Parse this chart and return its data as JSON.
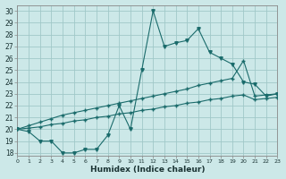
{
  "xlabel": "Humidex (Indice chaleur)",
  "ylabel": "",
  "bg_color": "#cce8e8",
  "grid_color": "#a0c8c8",
  "line_color": "#1a6b6b",
  "x_values": [
    0,
    1,
    2,
    3,
    4,
    5,
    6,
    7,
    8,
    9,
    10,
    11,
    12,
    13,
    14,
    15,
    16,
    17,
    18,
    19,
    20,
    21,
    22,
    23
  ],
  "line1": [
    20,
    19.8,
    19,
    19,
    18,
    18,
    18.3,
    18.3,
    19.5,
    22,
    20,
    25,
    30,
    27,
    27.3,
    27.5,
    28.5,
    26.5,
    26,
    25.5,
    24,
    23.8,
    22.8,
    23
  ],
  "line2": [
    20,
    20.3,
    20.6,
    20.9,
    21.2,
    21.4,
    21.6,
    21.8,
    22.0,
    22.2,
    22.4,
    22.6,
    22.8,
    23.0,
    23.2,
    23.4,
    23.7,
    23.9,
    24.1,
    24.3,
    25.8,
    22.8,
    22.9,
    23.0
  ],
  "line3": [
    20,
    20.1,
    20.2,
    20.4,
    20.5,
    20.7,
    20.8,
    21.0,
    21.1,
    21.3,
    21.4,
    21.6,
    21.7,
    21.9,
    22.0,
    22.2,
    22.3,
    22.5,
    22.6,
    22.8,
    22.9,
    22.5,
    22.6,
    22.7
  ],
  "xlim": [
    0,
    23
  ],
  "ylim": [
    17.8,
    30.5
  ],
  "yticks": [
    18,
    19,
    20,
    21,
    22,
    23,
    24,
    25,
    26,
    27,
    28,
    29,
    30
  ],
  "xticks": [
    0,
    1,
    2,
    3,
    4,
    5,
    6,
    7,
    8,
    9,
    10,
    11,
    12,
    13,
    14,
    15,
    16,
    17,
    18,
    19,
    20,
    21,
    22,
    23
  ]
}
